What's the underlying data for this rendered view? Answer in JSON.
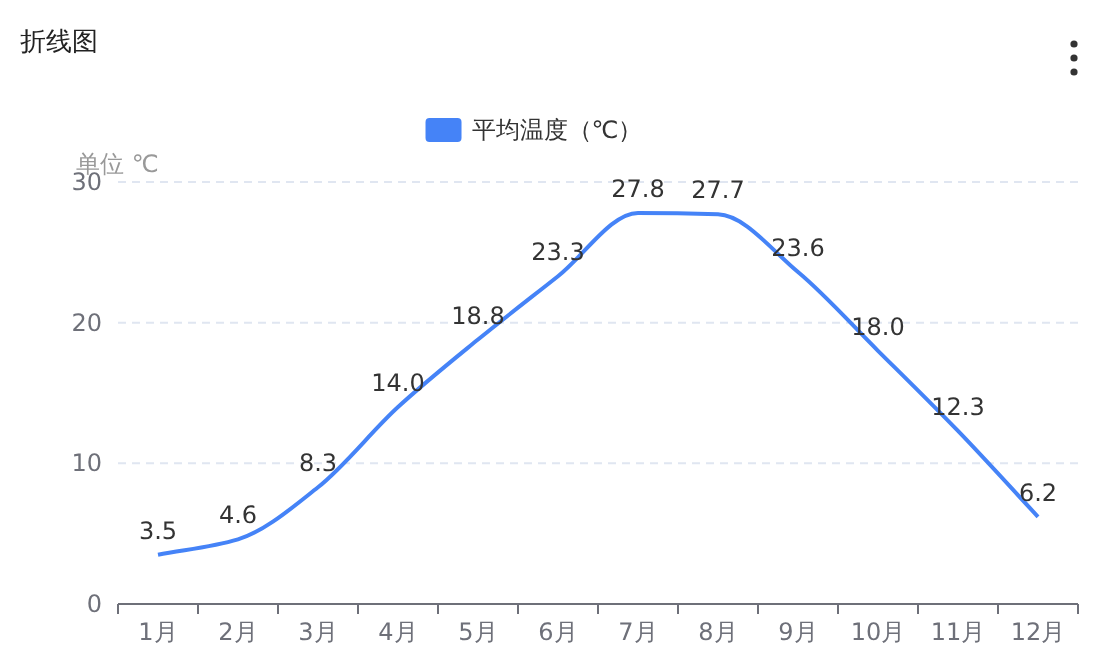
{
  "chart_data": {
    "type": "line",
    "title": "折线图",
    "ylabel": "单位 ℃",
    "categories": [
      "1月",
      "2月",
      "3月",
      "4月",
      "5月",
      "6月",
      "7月",
      "8月",
      "9月",
      "10月",
      "11月",
      "12月"
    ],
    "series": [
      {
        "name": "平均温度（℃）",
        "color": "#4583f7",
        "values": [
          3.5,
          4.6,
          8.3,
          14.0,
          18.8,
          23.3,
          27.8,
          27.7,
          23.6,
          18.0,
          12.3,
          6.2
        ],
        "value_labels": [
          "3.5",
          "4.6",
          "8.3",
          "14.0",
          "18.8",
          "23.3",
          "27.8",
          "27.7",
          "23.6",
          "18.0",
          "12.3",
          "6.2"
        ]
      }
    ],
    "ylim": [
      0,
      30
    ],
    "yticks": [
      0,
      10,
      20,
      30
    ],
    "grid": "y",
    "legend": "top"
  }
}
